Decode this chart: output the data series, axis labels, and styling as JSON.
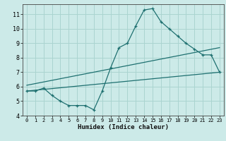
{
  "xlabel": "Humidex (Indice chaleur)",
  "xlim": [
    -0.5,
    23.5
  ],
  "ylim": [
    4,
    11.7
  ],
  "xticks": [
    0,
    1,
    2,
    3,
    4,
    5,
    6,
    7,
    8,
    9,
    10,
    11,
    12,
    13,
    14,
    15,
    16,
    17,
    18,
    19,
    20,
    21,
    22,
    23
  ],
  "yticks": [
    4,
    5,
    6,
    7,
    8,
    9,
    10,
    11
  ],
  "bg_color": "#cceae8",
  "grid_color": "#aad4d0",
  "line_color": "#1e7070",
  "line1_x": [
    0,
    1,
    2,
    3,
    4,
    5,
    6,
    7,
    8,
    9,
    10,
    11,
    12,
    13,
    14,
    15,
    16,
    17,
    18,
    19,
    20,
    21,
    22,
    23
  ],
  "line1_y": [
    5.7,
    5.7,
    5.9,
    5.4,
    5.0,
    4.7,
    4.7,
    4.7,
    4.4,
    5.7,
    7.3,
    8.7,
    9.0,
    10.2,
    11.3,
    11.4,
    10.5,
    10.0,
    9.5,
    9.0,
    8.6,
    8.2,
    8.2,
    7.0
  ],
  "line2_x": [
    0,
    23
  ],
  "line2_y": [
    6.1,
    8.7
  ],
  "line3_x": [
    0,
    23
  ],
  "line3_y": [
    5.7,
    7.0
  ]
}
